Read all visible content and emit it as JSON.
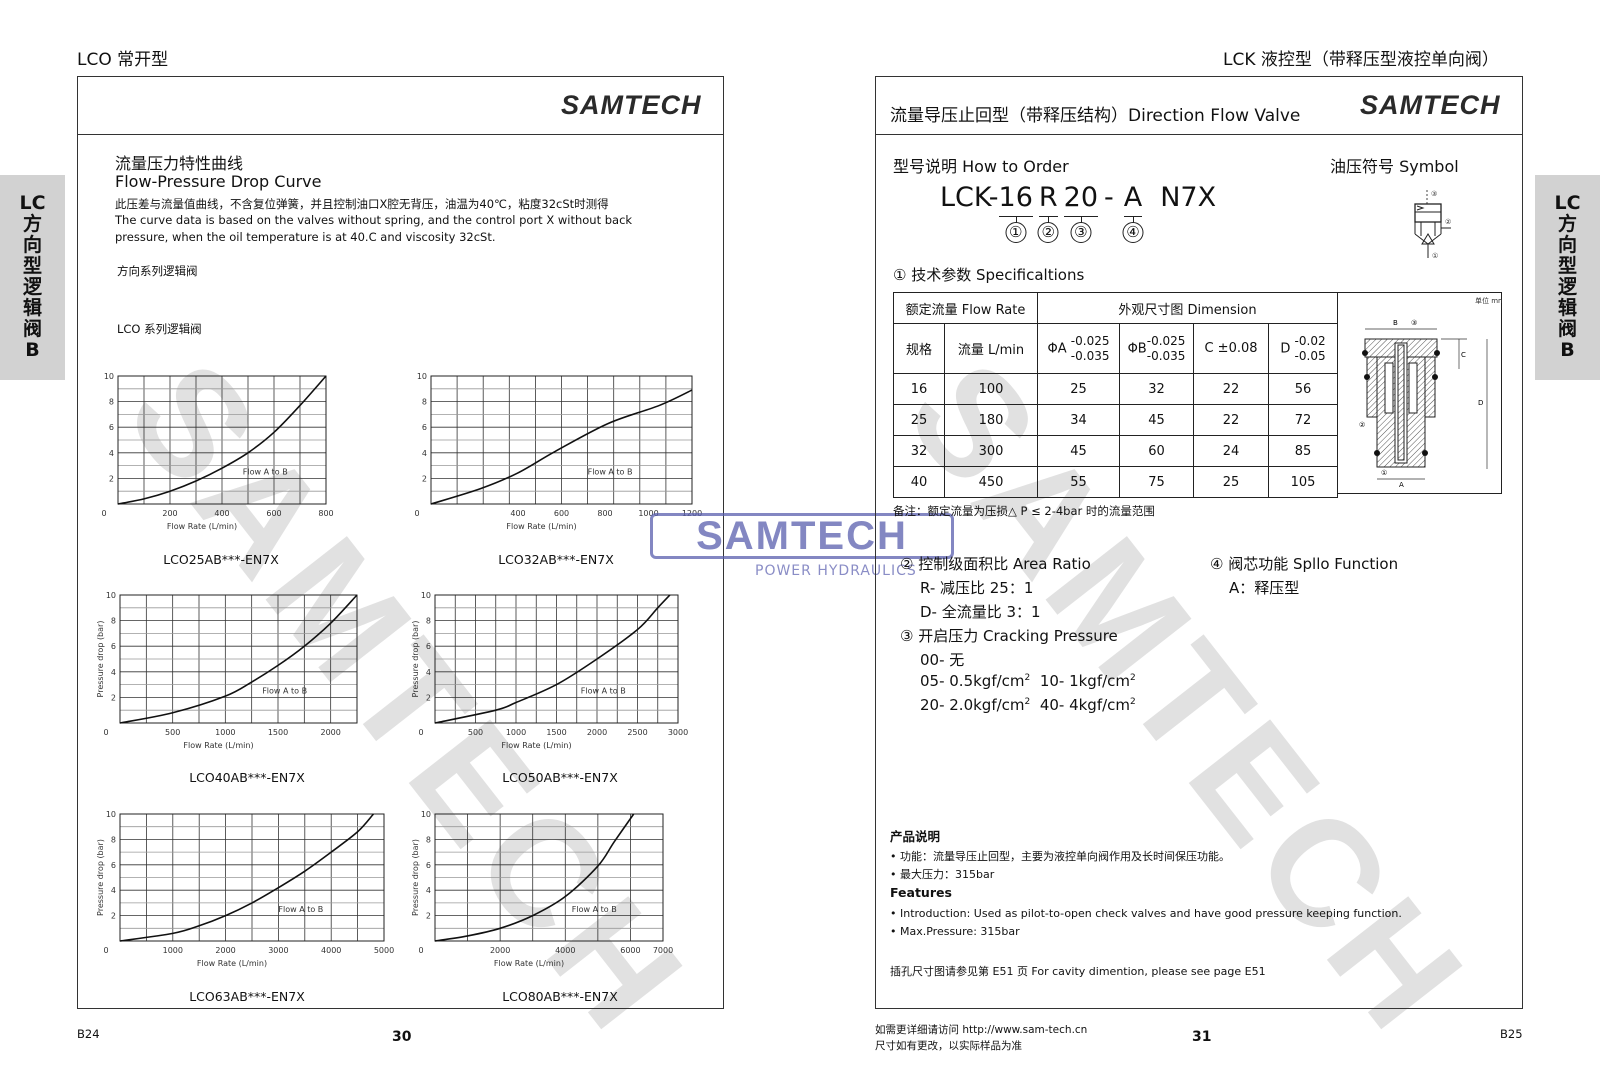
{
  "left_page": {
    "running_head": "LCO 常开型",
    "logo": "SAMTECH",
    "side_tab": [
      "LC",
      "方",
      "向",
      "型",
      "逻",
      "辑",
      "阀",
      "B"
    ],
    "title_cn": "流量压力特性曲线",
    "title_en": "Flow-Pressure Drop Curve",
    "desc_cn": "此压差与流量值曲线，不含复位弹簧，并且控制油口X腔无背压，油温为40℃，粘度32cSt时测得",
    "desc_en_1": "The curve data is based on the valves without spring, and the control port X without back",
    "desc_en_2": "pressure, when the oil temperature is at 40.C and viscosity 32cSt.",
    "series_heading_1": "方向系列逻辑阀",
    "series_heading_2": "LCO 系列逻辑阀",
    "footer_code": "B24",
    "page_number": "30"
  },
  "right_page": {
    "running_head": "LCK 液控型（带释压型液控单向阀）",
    "header_title": "流量导压止回型（带释压结构）Direction Flow Valve",
    "logo": "SAMTECH",
    "side_tab": [
      "LC",
      "方",
      "向",
      "型",
      "逻",
      "辑",
      "阀",
      "B"
    ],
    "how_to_order": "型号说明 How to Order",
    "symbol_label": "油压符号 Symbol",
    "order_code": {
      "prefix": "LCK-",
      "segments": [
        {
          "text": "16",
          "index": "①"
        },
        {
          "text": "R",
          "index": "②"
        },
        {
          "text": "20",
          "index": "③"
        },
        {
          "text": "-",
          "index": ""
        },
        {
          "text": "A",
          "index": "④"
        },
        {
          "text": "N7X",
          "index": ""
        }
      ]
    },
    "spec_heading": "① 技术参数 Specificaltions",
    "table": {
      "group_flow": "额定流量  Flow Rate",
      "group_dim": "外观尺寸图 Dimension",
      "col_size": "规格",
      "col_flow": "流量 L/min",
      "col_a": "ΦA",
      "col_a_tol_up": "-0.025",
      "col_a_tol_low": "-0.035",
      "col_b": "ΦB",
      "col_b_tol_up": "-0.025",
      "col_b_tol_low": "-0.035",
      "col_c": "C ±0.08",
      "col_d": "D",
      "col_d_tol_up": "-0.02",
      "col_d_tol_low": "-0.05",
      "rows": [
        [
          "16",
          "100",
          "25",
          "32",
          "22",
          "56"
        ],
        [
          "25",
          "180",
          "34",
          "45",
          "22",
          "72"
        ],
        [
          "32",
          "300",
          "45",
          "60",
          "24",
          "85"
        ],
        [
          "40",
          "450",
          "55",
          "75",
          "25",
          "105"
        ]
      ],
      "drawing_unit": "单位 mm",
      "drawing_labels": {
        "b": "B",
        "b_port": "③",
        "c": "C",
        "d": "D",
        "a": "A",
        "a_port": "①",
        "side_port": "②"
      }
    },
    "symbol_ports": {
      "top": "③",
      "side": "②",
      "bottom": "①"
    },
    "note": "备注：额定流量为压损△ P ≤ 2-4bar 时的流量范围",
    "area_ratio": {
      "heading": "② 控制级面积比 Area Ratio",
      "items": [
        "R- 减压比 25：1",
        "D- 全流量比 3：1"
      ]
    },
    "cracking": {
      "heading": "③ 开启压力 Cracking Pressure",
      "none": "00- 无",
      "p05": "05- 0.5kgf/cm",
      "p10": "10- 1kgf/cm",
      "p20": "20- 2.0kgf/cm",
      "p40": "40- 4kgf/cm",
      "unit_sup": "2"
    },
    "spool": {
      "heading": "④ 阀芯功能 Spllo Function",
      "items": [
        "A：释压型"
      ]
    },
    "product_heading": "产品说明",
    "product_items": [
      "• 功能：流量导压止回型，主要为液控单向阀作用及长时间保压功能。",
      "• 最大压力：315bar"
    ],
    "features_heading": "Features",
    "features_items": [
      "• Introduction: Used as pilot-to-open check valves and have good pressure keeping function.",
      "• Max.Pressure: 315bar"
    ],
    "cavity_note": "插孔尺寸图请参见第 E51 页 For cavity dimention, please see page E51",
    "footer_url": "如需更详细请访问 http://www.sam-tech.cn",
    "footer_note": "尺寸如有更改，以实际样品为准",
    "page_number": "31",
    "footer_code": "B25"
  },
  "watermark": {
    "text": "SAMTECH",
    "center_logo": "SAMTECH",
    "center_sub": "POWER HYDRAULICS",
    "center_color": "#5a5fae"
  },
  "chart_data": [
    {
      "type": "line",
      "caption": "LCO25AB***-EN7X",
      "xlabel": "Flow Rate (L/min)",
      "ylabel": "",
      "annotation": "Flow A to B",
      "xlim": [
        0,
        800
      ],
      "ylim": [
        0,
        10
      ],
      "xticks": [
        0,
        200,
        400,
        600,
        800
      ],
      "yticks": [
        2,
        4,
        6,
        8,
        10
      ],
      "grid": true,
      "points": [
        [
          0,
          0
        ],
        [
          100,
          0.4
        ],
        [
          200,
          1
        ],
        [
          300,
          1.8
        ],
        [
          400,
          2.8
        ],
        [
          500,
          4
        ],
        [
          600,
          5.6
        ],
        [
          700,
          7.7
        ],
        [
          800,
          10
        ]
      ]
    },
    {
      "type": "line",
      "caption": "LCO32AB***-EN7X",
      "xlabel": "Flow Rate (L/min)",
      "ylabel": "",
      "annotation": "Flow A to B",
      "xlim": [
        0,
        1200
      ],
      "ylim": [
        0,
        10
      ],
      "xticks": [
        0,
        400,
        600,
        800,
        1000,
        1200
      ],
      "yticks": [
        2,
        4,
        6,
        8,
        10
      ],
      "grid": true,
      "points": [
        [
          0,
          0
        ],
        [
          228,
          1.2
        ],
        [
          396,
          2.4
        ],
        [
          570,
          4.1
        ],
        [
          816,
          6.3
        ],
        [
          1050,
          7.7
        ],
        [
          1200,
          8.9
        ]
      ]
    },
    {
      "type": "line",
      "caption": "LCO40AB***-EN7X",
      "xlabel": "Flow Rate (L/min)",
      "ylabel": "Pressure drop (bar)",
      "annotation": "Flow A to B",
      "xlim": [
        0,
        2250
      ],
      "ylim": [
        0,
        10
      ],
      "xticks": [
        0,
        500,
        1000,
        1500,
        2000
      ],
      "yticks": [
        2,
        4,
        6,
        8,
        10
      ],
      "grid": true,
      "points": [
        [
          0,
          0
        ],
        [
          500,
          0.8
        ],
        [
          1000,
          2.1
        ],
        [
          1250,
          3.2
        ],
        [
          1500,
          4.5
        ],
        [
          1750,
          6
        ],
        [
          2000,
          7.8
        ],
        [
          2250,
          10
        ]
      ]
    },
    {
      "type": "line",
      "caption": "LCO50AB***-EN7X",
      "xlabel": "Flow Rate (L/min)",
      "ylabel": "Pressure drop (bar)",
      "annotation": "Flow A to B",
      "xlim": [
        0,
        3000
      ],
      "ylim": [
        0,
        10
      ],
      "xticks": [
        0,
        500,
        1000,
        1500,
        2000,
        2500,
        3000
      ],
      "yticks": [
        2,
        4,
        6,
        8,
        10
      ],
      "grid": true,
      "points": [
        [
          0,
          0
        ],
        [
          750,
          1
        ],
        [
          1000,
          1.6
        ],
        [
          1500,
          3
        ],
        [
          2000,
          5
        ],
        [
          2500,
          7.3
        ],
        [
          2750,
          9
        ],
        [
          2900,
          10
        ]
      ]
    },
    {
      "type": "line",
      "caption": "LCO63AB***-EN7X",
      "xlabel": "Flow Rate (L/min)",
      "ylabel": "Pressure drop (bar)",
      "annotation": "Flow A to B",
      "xlim": [
        0,
        5000
      ],
      "ylim": [
        0,
        10
      ],
      "xticks": [
        0,
        1000,
        2000,
        3000,
        4000,
        5000
      ],
      "yticks": [
        2,
        4,
        6,
        8,
        10
      ],
      "grid": true,
      "points": [
        [
          0,
          0
        ],
        [
          1000,
          0.6
        ],
        [
          1500,
          1.2
        ],
        [
          2000,
          2
        ],
        [
          2500,
          3
        ],
        [
          3000,
          4.2
        ],
        [
          3500,
          5.5
        ],
        [
          4000,
          7
        ],
        [
          4500,
          8.6
        ],
        [
          4800,
          10
        ]
      ]
    },
    {
      "type": "line",
      "caption": "LCO80AB***-EN7X",
      "xlabel": "Flow Rate (L/min)",
      "ylabel": "Pressure drop (bar)",
      "annotation": "Flow A to B",
      "xlim": [
        0,
        7000
      ],
      "ylim": [
        0,
        10
      ],
      "xticks": [
        0,
        2000,
        4000,
        6000,
        7000
      ],
      "yticks": [
        2,
        4,
        6,
        8,
        10
      ],
      "grid": true,
      "points": [
        [
          0,
          0
        ],
        [
          1000,
          0.4
        ],
        [
          2000,
          1
        ],
        [
          3000,
          2
        ],
        [
          4000,
          3.5
        ],
        [
          5000,
          5.9
        ],
        [
          5500,
          7.8
        ],
        [
          6100,
          10
        ]
      ]
    }
  ]
}
